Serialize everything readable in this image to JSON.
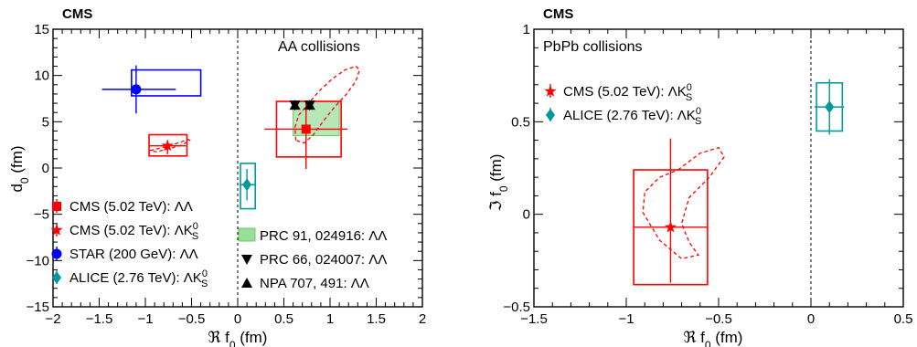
{
  "chart_data": [
    {
      "type": "scatter",
      "experiment_label": "CMS",
      "header": "AA collisions",
      "xlabel": "ℜ f0 (fm)",
      "ylabel": "d0 (fm)",
      "xlim": [
        -2,
        2
      ],
      "ylim": [
        -15,
        15
      ],
      "xticks": [
        -2,
        -1.5,
        -1,
        -0.5,
        0,
        0.5,
        1,
        1.5,
        2
      ],
      "yticks": [
        -15,
        -10,
        -5,
        0,
        5,
        10,
        15
      ],
      "xtick_labels": [
        "−2",
        "−1.5",
        "−1",
        "−0.5",
        "0",
        "0.5",
        "1",
        "1.5",
        "2"
      ],
      "ytick_labels": [
        "−15",
        "−10",
        "−5",
        "0",
        "5",
        "10",
        "15"
      ],
      "vertical_line_x": 0,
      "legend_left": [
        {
          "label": "CMS (5.02 TeV): ΛΛ",
          "color": "#ff0000",
          "marker": "square"
        },
        {
          "label": "CMS (5.02 TeV): ΛK",
          "sup": "0",
          "sub": "S",
          "color": "#ff0000",
          "marker": "star"
        },
        {
          "label": "STAR (200 GeV): ΛΛ",
          "color": "#0000ff",
          "marker": "circle"
        },
        {
          "label": "ALICE (2.76 TeV): ΛK",
          "sup": "0",
          "sub": "S",
          "color": "#009999",
          "marker": "diamond"
        }
      ],
      "legend_right": [
        {
          "label": "PRC 91, 024916: ΛΛ",
          "color": "#66cc66",
          "marker": "box"
        },
        {
          "label": "PRC 66, 024007: ΛΛ",
          "color": "#000000",
          "marker": "triangle-down"
        },
        {
          "label": "NPA 707, 491: ΛΛ",
          "color": "#000000",
          "marker": "triangle-up"
        }
      ],
      "series": [
        {
          "name": "CMS (5.02 TeV): ΛΛ",
          "marker": "square",
          "color": "#ff0000",
          "x": 0.74,
          "y": 4.2,
          "xerr": [
            0.45,
            0.45
          ],
          "yerr": [
            4.3,
            2.9
          ],
          "sys": {
            "x": [
              0.42,
              1.12
            ],
            "y": [
              1.2,
              7.2
            ]
          }
        },
        {
          "name": "CMS (5.02 TeV): ΛK0S",
          "marker": "star",
          "color": "#ff0000",
          "x": -0.76,
          "y": 2.4,
          "xerr": [
            0.2,
            0.2
          ],
          "yerr": [
            0.9,
            0.6
          ],
          "sys": {
            "x": [
              -0.96,
              -0.55
            ],
            "y": [
              1.3,
              3.6
            ]
          }
        },
        {
          "name": "STAR (200 GeV): ΛΛ",
          "marker": "circle",
          "color": "#0000ff",
          "x": -1.1,
          "y": 8.5,
          "xerr": [
            0.37,
            0.43
          ],
          "yerr": [
            2.6,
            2.6
          ],
          "sys": {
            "x": [
              -1.15,
              -0.4
            ],
            "y": [
              7.8,
              10.6
            ]
          }
        },
        {
          "name": "ALICE (2.76 TeV): ΛK0S",
          "marker": "diamond",
          "color": "#009999",
          "x": 0.1,
          "y": -1.8,
          "xerr": [
            0.08,
            0.1
          ],
          "yerr": [
            1.7,
            1.7
          ],
          "sys": {
            "x": [
              0.03,
              0.19
            ],
            "y": [
              -4.4,
              0.5
            ]
          }
        },
        {
          "name": "PRC 91, 024916: ΛΛ",
          "type": "band",
          "color": "#66cc66",
          "x": [
            0.6,
            1.1
          ],
          "y": [
            3.5,
            7.2
          ]
        },
        {
          "name": "PRC 66, 024007: ΛΛ",
          "marker": "triangle-down",
          "color": "#000000",
          "points": [
            [
              0.62,
              6.8
            ],
            [
              0.78,
              6.8
            ]
          ]
        },
        {
          "name": "NPA 707, 491: ΛΛ",
          "marker": "triangle-up",
          "color": "#000000",
          "points": [
            [
              0.62,
              6.8
            ],
            [
              0.78,
              6.8
            ]
          ]
        }
      ],
      "contours": [
        {
          "color": "#ff0000",
          "style": "dashed",
          "points": [
            [
              0.63,
              3.0
            ],
            [
              0.62,
              4.4
            ],
            [
              0.66,
              5.7
            ],
            [
              0.76,
              6.9
            ],
            [
              0.88,
              8.3
            ],
            [
              1.02,
              9.6
            ],
            [
              1.16,
              10.6
            ],
            [
              1.28,
              11.0
            ],
            [
              1.32,
              10.6
            ],
            [
              1.28,
              9.4
            ],
            [
              1.18,
              8.0
            ],
            [
              1.05,
              6.6
            ],
            [
              0.93,
              5.1
            ],
            [
              0.82,
              3.6
            ],
            [
              0.72,
              2.7
            ],
            [
              0.63,
              3.0
            ]
          ]
        },
        {
          "color": "#ff0000",
          "style": "dashed",
          "points": [
            [
              -0.95,
              1.9
            ],
            [
              -0.86,
              2.1
            ],
            [
              -0.74,
              2.4
            ],
            [
              -0.62,
              2.8
            ],
            [
              -0.54,
              3.1
            ],
            [
              -0.52,
              3.0
            ],
            [
              -0.6,
              2.5
            ],
            [
              -0.74,
              2.1
            ],
            [
              -0.88,
              1.75
            ],
            [
              -0.95,
              1.9
            ]
          ]
        }
      ]
    },
    {
      "type": "scatter",
      "experiment_label": "CMS",
      "header": "PbPb collisions",
      "xlabel": "ℜ f0 (fm)",
      "ylabel": "ℑ f0 (fm)",
      "xlim": [
        -1.5,
        0.5
      ],
      "ylim": [
        -0.5,
        1
      ],
      "xticks": [
        -1.5,
        -1,
        -0.5,
        0,
        0.5
      ],
      "yticks": [
        -0.5,
        0,
        0.5,
        1
      ],
      "xtick_labels": [
        "−1.5",
        "−1",
        "−0.5",
        "0",
        "0.5"
      ],
      "ytick_labels": [
        "−0.5",
        "0",
        "0.5",
        "1"
      ],
      "vertical_line_x": 0,
      "legend": [
        {
          "label": "CMS (5.02 TeV): ΛK",
          "sup": "0",
          "sub": "S",
          "color": "#ff0000",
          "marker": "star"
        },
        {
          "label": "ALICE (2.76 TeV): ΛK",
          "sup": "0",
          "sub": "S",
          "color": "#009999",
          "marker": "diamond"
        }
      ],
      "series": [
        {
          "name": "CMS (5.02 TeV): ΛK0S",
          "marker": "star",
          "color": "#ff0000",
          "x": -0.76,
          "y": -0.07,
          "xerr": [
            0.2,
            0.2
          ],
          "yerr": [
            0.3,
            0.48
          ],
          "sys": {
            "x": [
              -0.96,
              -0.56
            ],
            "y": [
              -0.38,
              0.24
            ]
          }
        },
        {
          "name": "ALICE (2.76 TeV): ΛK0S",
          "marker": "diamond",
          "color": "#009999",
          "x": 0.1,
          "y": 0.58,
          "xerr": [
            0.08,
            0.08
          ],
          "yerr": [
            0.15,
            0.15
          ],
          "sys": {
            "x": [
              0.03,
              0.17
            ],
            "y": [
              0.45,
              0.71
            ]
          }
        }
      ],
      "contours": [
        {
          "color": "#ff0000",
          "style": "dashed",
          "points": [
            [
              -0.72,
              0.24
            ],
            [
              -0.6,
              0.33
            ],
            [
              -0.5,
              0.36
            ],
            [
              -0.47,
              0.31
            ],
            [
              -0.55,
              0.2
            ],
            [
              -0.66,
              0.09
            ],
            [
              -0.7,
              -0.05
            ],
            [
              -0.66,
              -0.15
            ],
            [
              -0.61,
              -0.22
            ],
            [
              -0.7,
              -0.24
            ],
            [
              -0.82,
              -0.14
            ],
            [
              -0.91,
              0.01
            ],
            [
              -0.9,
              0.12
            ],
            [
              -0.82,
              0.2
            ],
            [
              -0.72,
              0.24
            ]
          ]
        }
      ]
    }
  ]
}
